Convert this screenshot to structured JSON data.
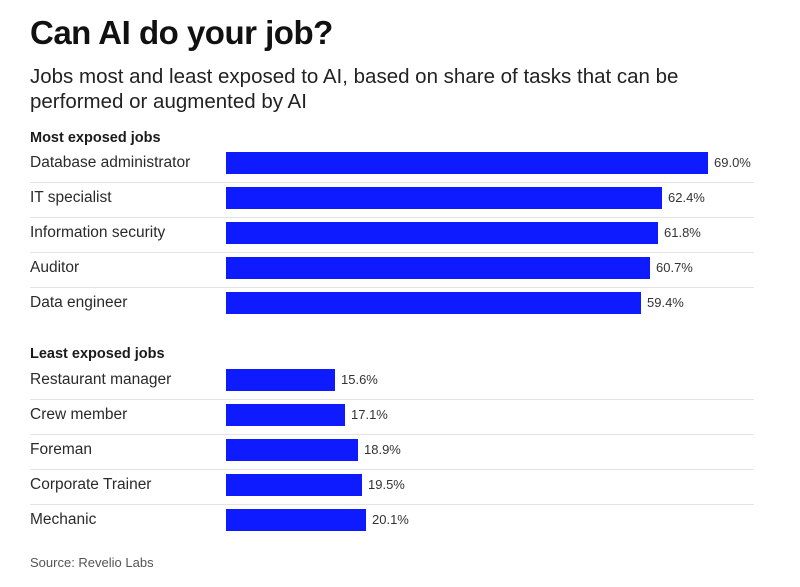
{
  "chart_data": {
    "type": "bar",
    "orientation": "horizontal",
    "title": "Can AI do your job?",
    "subtitle": "Jobs most and least exposed to AI, based on share of tasks that can be performed or augmented by AI",
    "source": "Source: Revelio Labs",
    "value_suffix": "%",
    "xlim": [
      0,
      69.0
    ],
    "bar_color": "#0f1bff",
    "groups": [
      {
        "name": "Most exposed jobs",
        "categories": [
          "Database administrator",
          "IT specialist",
          "Information security",
          "Auditor",
          "Data engineer"
        ],
        "values": [
          69.0,
          62.4,
          61.8,
          60.7,
          59.4
        ]
      },
      {
        "name": "Least exposed jobs",
        "categories": [
          "Restaurant manager",
          "Crew member",
          "Foreman",
          "Corporate Trainer",
          "Mechanic"
        ],
        "values": [
          15.6,
          17.1,
          18.9,
          19.5,
          20.1
        ]
      }
    ]
  }
}
